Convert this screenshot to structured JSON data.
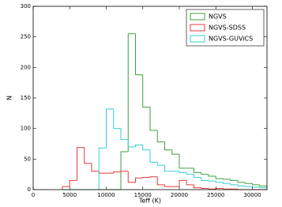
{
  "chart_data": {
    "type": "histogram",
    "x_label": "Teff (K)",
    "y_label": "N",
    "bins": [
      4000,
      5000,
      6000,
      7000,
      8000,
      9000,
      10000,
      11000,
      12000,
      13000,
      14000,
      15000,
      16000,
      17000,
      18000,
      19000,
      20000,
      21000,
      22000,
      23000,
      24000,
      25000,
      26000,
      27000,
      28000,
      29000,
      30000,
      31000,
      32000
    ],
    "series": [
      {
        "name": "NGVS",
        "color": "#3da13d",
        "values": [
          0,
          0,
          0,
          0,
          0,
          0,
          0,
          0,
          62,
          255,
          188,
          135,
          97,
          78,
          65,
          58,
          35,
          35,
          28,
          25,
          22,
          18,
          17,
          15,
          12,
          10,
          8,
          6
        ]
      },
      {
        "name": "NGVS-SDSS",
        "color": "#e83a3a",
        "values": [
          5,
          15,
          69,
          43,
          30,
          27,
          27,
          29,
          30,
          12,
          19,
          20,
          21,
          8,
          5,
          5,
          15,
          8,
          3,
          2,
          1,
          2,
          1,
          1,
          0,
          0,
          0,
          0
        ]
      },
      {
        "name": "NGVS-GUViCS",
        "color": "#36cfcf",
        "values": [
          0,
          0,
          0,
          0,
          0,
          68,
          132,
          100,
          82,
          70,
          73,
          65,
          45,
          40,
          30,
          30,
          28,
          25,
          20,
          15,
          14,
          12,
          10,
          8,
          6,
          5,
          4,
          3
        ]
      }
    ],
    "xlim": [
      0,
      32000
    ],
    "ylim": [
      0,
      300
    ],
    "xticks": [
      0,
      5000,
      10000,
      15000,
      20000,
      25000,
      30000
    ],
    "yticks": [
      0,
      50,
      100,
      150,
      200,
      250,
      300
    ],
    "legend": "upper right"
  }
}
